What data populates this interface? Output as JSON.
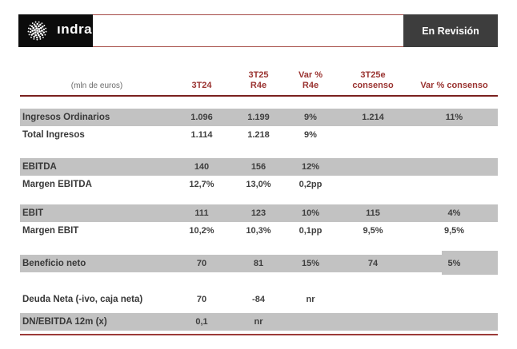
{
  "brand": {
    "logo_text": "ındra"
  },
  "header_bar": {
    "status_label": "En Revisión"
  },
  "table": {
    "unit_label": "(mln de euros)",
    "columns": [
      {
        "line1": "",
        "line2": "3T24"
      },
      {
        "line1": "3T25",
        "line2": "R4e"
      },
      {
        "line1": "Var %",
        "line2": "R4e"
      },
      {
        "line1": "3T25e",
        "line2": "consenso"
      },
      {
        "line1": "",
        "line2": "Var % consenso"
      }
    ],
    "rows": [
      {
        "label": "Ingresos Ordinarios",
        "values": [
          "1.096",
          "1.199",
          "9%",
          "1.214",
          "11%"
        ]
      },
      {
        "label": "Total Ingresos",
        "values": [
          "1.114",
          "1.218",
          "9%",
          "",
          ""
        ]
      },
      {
        "label": "EBITDA",
        "values": [
          "140",
          "156",
          "12%",
          "",
          ""
        ]
      },
      {
        "label": "Margen EBITDA",
        "values": [
          "12,7%",
          "13,0%",
          "0,2pp",
          "",
          ""
        ]
      },
      {
        "label": "EBIT",
        "values": [
          "111",
          "123",
          "10%",
          "115",
          "4%"
        ]
      },
      {
        "label": "Margen EBIT",
        "values": [
          "10,2%",
          "10,3%",
          "0,1pp",
          "9,5%",
          "9,5%"
        ]
      },
      {
        "label": "Beneficio neto",
        "values": [
          "70",
          "81",
          "15%",
          "74",
          "5%"
        ]
      },
      {
        "label": "Deuda Neta (-ivo, caja neta)",
        "values": [
          "70",
          "-84",
          "nr",
          "",
          ""
        ]
      },
      {
        "label": "DN/EBITDA 12m (x)",
        "values": [
          "0,1",
          "nr",
          "",
          "",
          ""
        ]
      }
    ]
  },
  "colors": {
    "accent_red": "#9a3330",
    "rule_dark": "#7a201e",
    "rule_light": "#9c3a38",
    "row_highlight": "#c2c2c2",
    "status_bg": "#3d3d3d",
    "logo_bg": "#0c0c0c",
    "body_text": "#3f3f3f"
  }
}
